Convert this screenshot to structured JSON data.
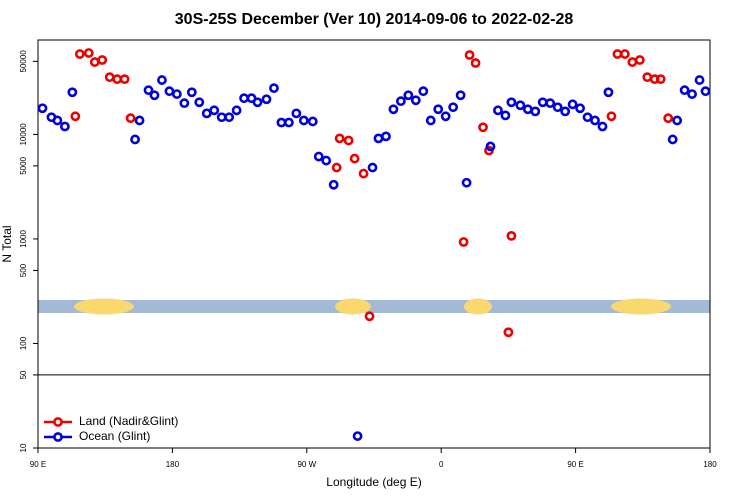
{
  "chart_data": {
    "type": "scatter",
    "title": "30S-25S December (Ver 10)   2014-09-06 to 2022-02-28",
    "x_label": "Longitude (deg E)",
    "y_label": "N Total",
    "xlim": [
      90,
      540
    ],
    "xticks": [
      {
        "value": 90,
        "label": "90 E"
      },
      180,
      {
        "value": 270,
        "label": "90 W"
      },
      {
        "value": 360,
        "label": "0"
      },
      {
        "value": 450,
        "label": "90 E"
      },
      {
        "value": 540,
        "label": "180"
      }
    ],
    "ylim": [
      10,
      80000
    ],
    "log_y": true,
    "yticks": [
      10,
      50,
      100,
      500,
      1000,
      5000,
      10000,
      50000
    ],
    "hline": 50,
    "legend": "bottom-left",
    "series": [
      {
        "name": "Land (Nadir&Glint)",
        "color": "#ee0000",
        "x": [
          115,
          118,
          124,
          128,
          133,
          138,
          143,
          148,
          152,
          290,
          292,
          298,
          302,
          308,
          312,
          375,
          379,
          383,
          388,
          392,
          405,
          407,
          474,
          478,
          483,
          488,
          493,
          498,
          503,
          507,
          512
        ],
        "values": [
          14900,
          58700,
          60100,
          49200,
          51500,
          35300,
          33800,
          33800,
          14300,
          4820,
          9160,
          8750,
          5870,
          4220,
          182,
          935,
          57500,
          48200,
          11700,
          7010,
          128,
          1070,
          14900,
          58700,
          58700,
          49200,
          51500,
          35300,
          33800,
          33800,
          14300
        ]
      },
      {
        "name": "Ocean (Glint)",
        "color": "#0000dd",
        "x": [
          93,
          99,
          103,
          108,
          113,
          155,
          158,
          164,
          168,
          173,
          178,
          183,
          188,
          193,
          198,
          203,
          208,
          213,
          218,
          223,
          228,
          233,
          237,
          243,
          248,
          253,
          258,
          263,
          268,
          274,
          278,
          283,
          288,
          304,
          314,
          318,
          323,
          328,
          333,
          338,
          343,
          348,
          353,
          358,
          363,
          368,
          373,
          377,
          393,
          398,
          403,
          407,
          413,
          418,
          423,
          428,
          433,
          438,
          443,
          448,
          453,
          458,
          463,
          468,
          472,
          515,
          518,
          523,
          528,
          533,
          537
        ],
        "values": [
          17800,
          14600,
          13600,
          11900,
          25300,
          8950,
          13600,
          26500,
          23700,
          33100,
          25900,
          24300,
          19900,
          25300,
          20300,
          15900,
          17000,
          14600,
          14600,
          17000,
          22200,
          22200,
          20300,
          21700,
          27700,
          13000,
          13000,
          15900,
          13600,
          13300,
          6140,
          5620,
          3300,
          13,
          4820,
          9160,
          9570,
          17400,
          20800,
          23700,
          21200,
          25900,
          13600,
          17400,
          14900,
          18200,
          23700,
          3450,
          7670,
          17000,
          15200,
          20300,
          19000,
          17400,
          16600,
          20300,
          19900,
          18200,
          16600,
          19400,
          17800,
          14600,
          13600,
          11900,
          25300,
          8950,
          13600,
          26500,
          24300,
          33100,
          25900
        ]
      }
    ]
  }
}
